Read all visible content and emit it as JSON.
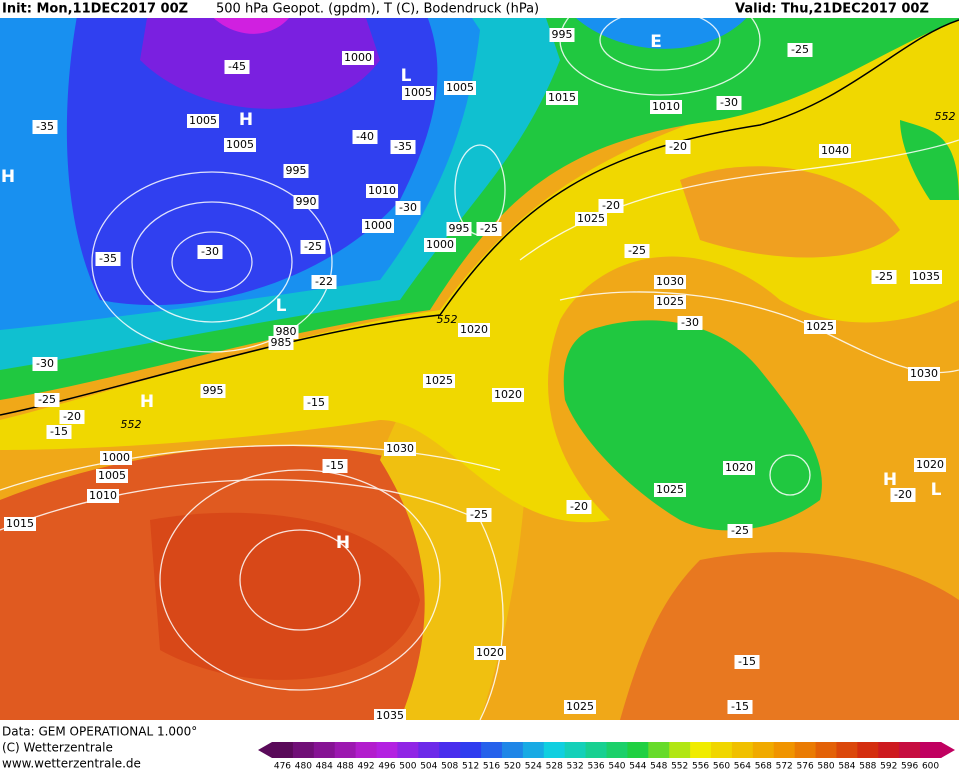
{
  "header": {
    "init": "Init: Mon,11DEC2017 00Z",
    "description": "500 hPa Geopot. (gpdm), T (C), Bodendruck (hPa)",
    "valid": "Valid: Thu,21DEC2017 00Z"
  },
  "footer": {
    "data": "Data: GEM OPERATIONAL 1.000°",
    "copyright": "(C) Wetterzentrale",
    "url": "www.wetterzentrale.de"
  },
  "colorbar": {
    "ticks": [
      476,
      480,
      484,
      488,
      492,
      496,
      500,
      504,
      508,
      512,
      516,
      520,
      524,
      528,
      532,
      536,
      540,
      544,
      548,
      552,
      556,
      560,
      564,
      568,
      572,
      576,
      580,
      584,
      588,
      592,
      596,
      600
    ]
  },
  "map_labels": [
    "995",
    "-25",
    "-45",
    "1000",
    "1005",
    "1005",
    "1015",
    "1010",
    "-30",
    "-35",
    "1005",
    "H",
    "1005",
    "-40",
    "-35",
    "-20",
    "1040",
    "H",
    "995",
    "990",
    "1010",
    "-30",
    "1000",
    "995",
    "-25",
    "-20",
    "1025",
    "1000",
    "-25",
    "-35",
    "-30",
    "-22",
    "-25",
    "1030",
    "-25",
    "1035",
    "1025",
    "-30",
    "L",
    "980",
    "985",
    "1020",
    "1025",
    "-30",
    "1025",
    "1030",
    "995",
    "-25",
    "H",
    "-15",
    "1020",
    "-20",
    "-15",
    "1030",
    "1000",
    "-15",
    "1005",
    "1010",
    "1020",
    "H",
    "1020",
    "-20",
    "L",
    "1025",
    "1015",
    "-20",
    "-25",
    "-25",
    "H",
    "1020",
    "-15",
    "1025",
    "-15",
    "1035",
    "552",
    "552",
    "552",
    "L",
    "E"
  ]
}
